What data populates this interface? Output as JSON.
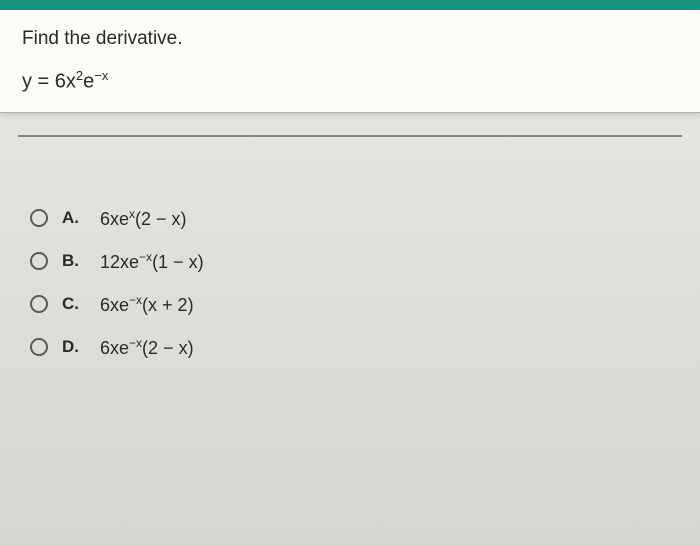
{
  "question": {
    "prompt": "Find the derivative.",
    "equation_html": "y = 6x<sup>2</sup>e<sup>−x</sup>"
  },
  "options": [
    {
      "label": "A.",
      "content_html": "6xe<sup>x</sup>(2 − x)"
    },
    {
      "label": "B.",
      "content_html": "12xe<sup>−x</sup>(1 − x)"
    },
    {
      "label": "C.",
      "content_html": "6xe<sup>−x</sup>(x + 2)"
    },
    {
      "label": "D.",
      "content_html": "6xe<sup>−x</sup>(2 − x)"
    }
  ],
  "colors": {
    "top_bar": "#1a9680",
    "card_bg": "#fcfbf8",
    "text": "#2a2a2a",
    "radio_border": "#5a5a5a"
  }
}
